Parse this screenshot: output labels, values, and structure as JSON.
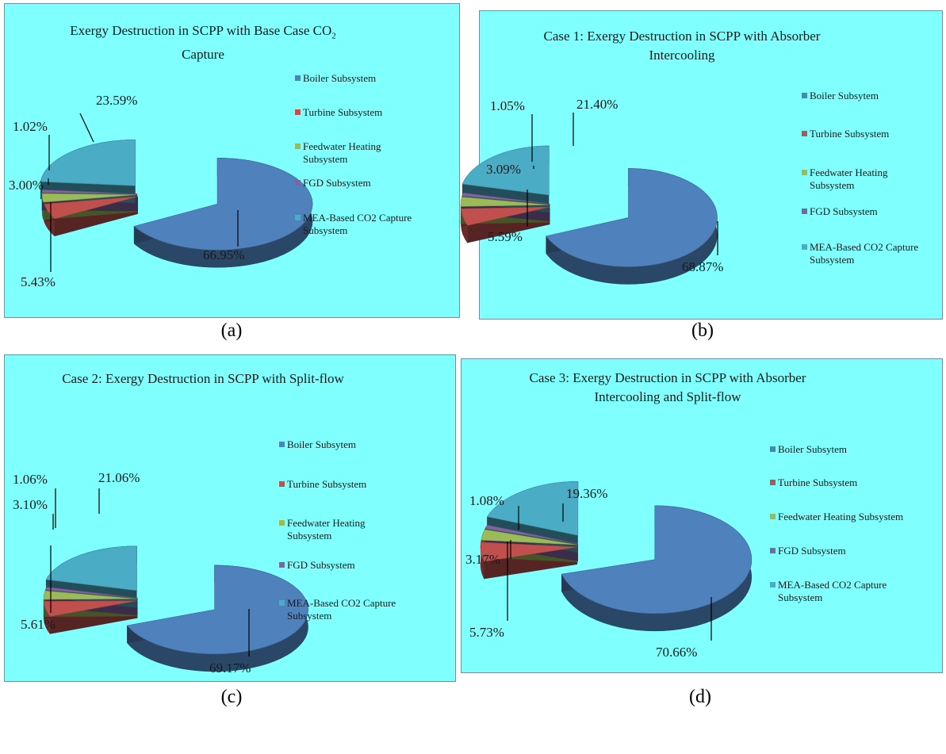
{
  "colors": {
    "boiler": "#4F81BD",
    "turbine": "#C0504D",
    "feedwater": "#9BBB59",
    "fgd": "#8064A2",
    "mea": "#4BACC6",
    "background": "#80FFFF"
  },
  "chart_data": [
    {
      "type": "pie",
      "title_main": "Exergy Destruction in SCPP with Base Case CO",
      "title_sub": "2",
      "title_end": "Capture",
      "caption": "(a)",
      "legend": [
        "Boiler Subsystem",
        "Turbine Subsystem",
        "Feedwater Heating Subsystem",
        "FGD Subsystem",
        "MEA-Based CO2 Capture Subsystem"
      ],
      "labels": [
        "66.95%",
        "5.43%",
        "3.00%",
        "1.02%",
        "23.59%"
      ],
      "values": [
        66.95,
        5.43,
        3.0,
        1.02,
        23.59
      ]
    },
    {
      "type": "pie",
      "title_main": "Case 1: Exergy Destruction in SCPP with Absorber Intercooling",
      "caption": "(b)",
      "legend": [
        "Boiler Subsytem",
        "Turbine Subsystem",
        "Feedwater Heating Subsystem",
        "FGD Subsystem",
        "MEA-Based CO2 Capture Subsystem"
      ],
      "labels": [
        "68.87%",
        "5.59%",
        "3.09%",
        "1.05%",
        "21.40%"
      ],
      "values": [
        68.87,
        5.59,
        3.09,
        1.05,
        21.4
      ]
    },
    {
      "type": "pie",
      "title_main": "Case 2: Exergy Destruction in SCPP with Split-flow",
      "caption": "(c)",
      "legend": [
        "Boiler Subsytem",
        "Turbine Subsystem",
        "Feedwater Heating Subsystem",
        "FGD Subsystem",
        "MEA-Based CO2 Capture Subsystem"
      ],
      "labels": [
        "69.17%",
        "5.61%",
        "3.10%",
        "1.06%",
        "21.06%"
      ],
      "values": [
        69.17,
        5.61,
        3.1,
        1.06,
        21.06
      ]
    },
    {
      "type": "pie",
      "title_main": "Case 3: Exergy Destruction in SCPP with Absorber Intercooling and Split-flow",
      "caption": "(d)",
      "legend": [
        "Boiler Subsytem",
        "Turbine Subsystem",
        "Feedwater Heating Subsystem",
        "FGD Subsystem",
        "MEA-Based CO2 Capture Subsystem"
      ],
      "labels": [
        "70.66%",
        "5.73%",
        "3.17%",
        "1.08%",
        "19.36%"
      ],
      "values": [
        70.66,
        5.73,
        3.17,
        1.08,
        19.36
      ]
    }
  ]
}
